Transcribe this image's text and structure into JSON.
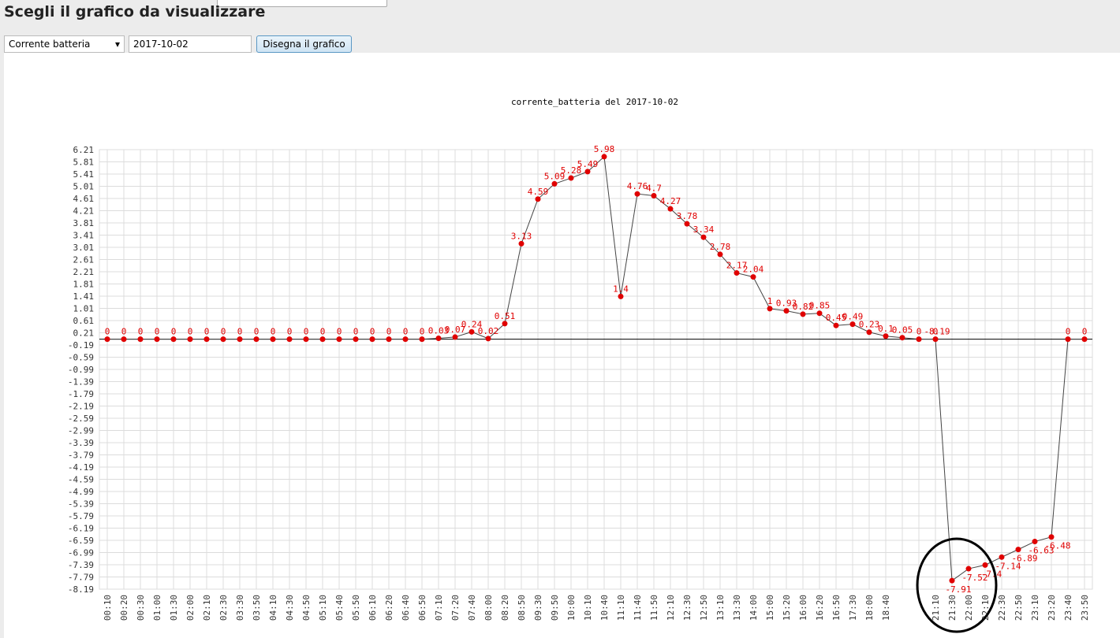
{
  "header": {
    "title": "Scegli il grafico da visualizzare"
  },
  "controls": {
    "select": "Corrente batteria",
    "date": "2017-10-02",
    "button": "Disegna il grafico"
  },
  "chart_data": {
    "type": "line",
    "title": "corrente_batteria del 2017-10-02",
    "categories": [
      "00:10",
      "00:20",
      "00:30",
      "01:00",
      "01:30",
      "02:00",
      "02:10",
      "02:30",
      "03:30",
      "03:50",
      "04:10",
      "04:30",
      "04:50",
      "05:10",
      "05:40",
      "05:50",
      "06:10",
      "06:20",
      "06:40",
      "06:50",
      "07:10",
      "07:20",
      "07:40",
      "08:00",
      "08:20",
      "08:50",
      "09:30",
      "09:50",
      "10:00",
      "10:10",
      "10:40",
      "11:10",
      "11:40",
      "11:50",
      "12:10",
      "12:30",
      "12:50",
      "13:10",
      "13:30",
      "14:00",
      "15:00",
      "15:20",
      "16:00",
      "16:20",
      "16:50",
      "17:30",
      "18:00",
      "18:40",
      null,
      null,
      "21:10",
      "21:30",
      "22:00",
      "22:10",
      "22:30",
      "22:50",
      "23:10",
      "23:20",
      "23:40",
      "23:50"
    ],
    "values": [
      0,
      0,
      0,
      0,
      0,
      0,
      0,
      0,
      0,
      0,
      0,
      0,
      0,
      0,
      0,
      0,
      0,
      0,
      0,
      0,
      0.03,
      0.07,
      0.24,
      0.02,
      0.51,
      3.13,
      4.59,
      5.09,
      5.28,
      5.49,
      5.98,
      1.4,
      4.76,
      4.7,
      4.27,
      3.78,
      3.34,
      2.78,
      2.17,
      2.04,
      1,
      0.93,
      0.82,
      0.85,
      0.45,
      0.49,
      0.23,
      0.1,
      0.05,
      0,
      0,
      -7.91,
      -7.52,
      -7.4,
      -7.14,
      -6.89,
      -6.63,
      -6.48,
      0,
      0
    ],
    "annotations": [
      "-8.19"
    ],
    "color": "#e00000",
    "line_color": "#444444",
    "ylim": [
      -8.19,
      6.21
    ],
    "yticks": [
      6.21,
      5.81,
      5.41,
      5.01,
      4.61,
      4.21,
      3.81,
      3.41,
      3.01,
      2.61,
      2.21,
      1.81,
      1.41,
      1.01,
      0.61,
      0.21,
      -0.19,
      -0.59,
      -0.99,
      -1.39,
      -1.79,
      -2.19,
      -2.59,
      -2.99,
      -3.39,
      -3.79,
      -4.19,
      -4.59,
      -4.99,
      -5.39,
      -5.79,
      -6.19,
      -6.59,
      -6.99,
      -7.39,
      -7.79,
      -8.19
    ],
    "grid": true,
    "zero_line": true
  }
}
